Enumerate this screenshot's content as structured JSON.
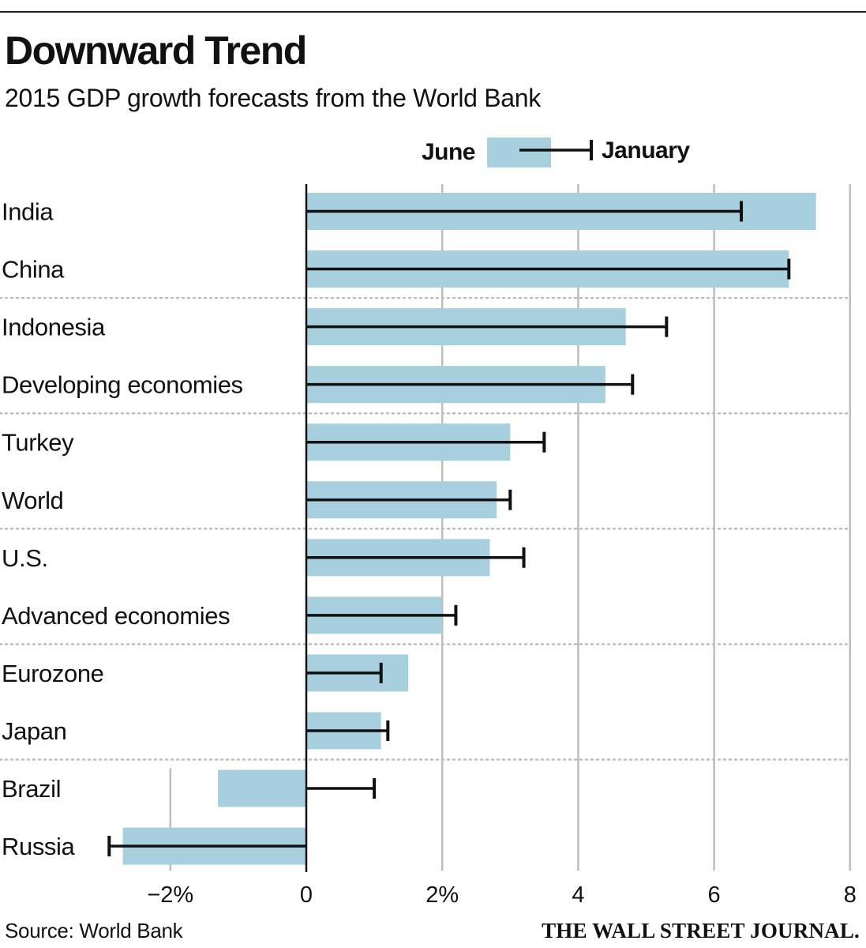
{
  "header": {
    "title": "Downward Trend",
    "subtitle": "2015 GDP growth forecasts from the World Bank"
  },
  "footer": {
    "source": "Source: World Bank",
    "publisher": "THE WALL STREET JOURNAL."
  },
  "colors": {
    "bar": "#a8cfde",
    "errorbar": "#111111",
    "gridline": "#bdbdbd",
    "separator": "#bdbdbd",
    "axis": "#111111",
    "text": "#111111"
  },
  "chart_data": {
    "type": "bar",
    "orientation": "horizontal",
    "title": "Downward Trend",
    "subtitle": "2015 GDP growth forecasts from the World Bank",
    "xlabel": "",
    "ylabel": "",
    "xlim": [
      -2.9,
      8
    ],
    "xticks": [
      {
        "value": -2,
        "label": "−2%"
      },
      {
        "value": 0,
        "label": "0"
      },
      {
        "value": 2,
        "label": "2%"
      },
      {
        "value": 4,
        "label": "4"
      },
      {
        "value": 6,
        "label": "6"
      },
      {
        "value": 8,
        "label": "8"
      }
    ],
    "grid": true,
    "legend": {
      "placement": "top-center",
      "entries": [
        {
          "key": "june",
          "label": "June",
          "marker": "bar"
        },
        {
          "key": "january",
          "label": "January",
          "marker": "errorbar"
        }
      ]
    },
    "categories": [
      "India",
      "China",
      "Indonesia",
      "Developing economies",
      "Turkey",
      "World",
      "U.S.",
      "Advanced economies",
      "Eurozone",
      "Japan",
      "Brazil",
      "Russia"
    ],
    "series": [
      {
        "name": "June",
        "style": "bar",
        "values": [
          7.5,
          7.1,
          4.7,
          4.4,
          3.0,
          2.8,
          2.7,
          2.0,
          1.5,
          1.1,
          -1.3,
          -2.7
        ]
      },
      {
        "name": "January",
        "style": "errorbar",
        "values": [
          6.4,
          7.1,
          5.3,
          4.8,
          3.5,
          3.0,
          3.2,
          2.2,
          1.1,
          1.2,
          1.0,
          -2.9
        ]
      }
    ],
    "group_separators_after": [
      1,
      3,
      5,
      7,
      9
    ]
  }
}
